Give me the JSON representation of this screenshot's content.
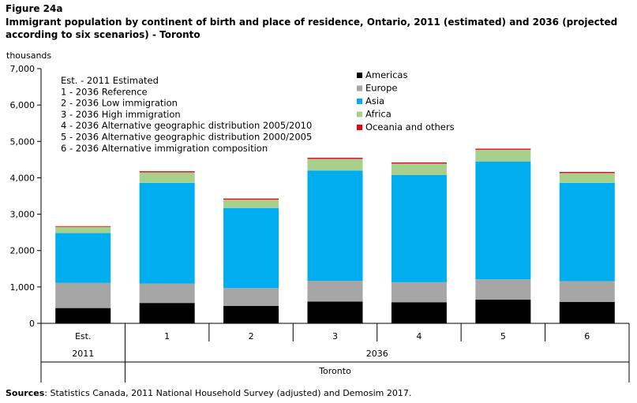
{
  "figure": {
    "label": "Figure 24a",
    "title": "Immigrant population by continent of birth and place of residence, Ontario, 2011 (estimated) and 2036 (projected according to six scenarios) - Toronto",
    "sources_label": "Sources",
    "sources_text": ": Statistics Canada, 2011 National Household Survey (adjusted) and Demosim 2017."
  },
  "chart_data": {
    "type": "bar",
    "stacked": true,
    "ylabel": "thousands",
    "ylim": [
      0,
      7000
    ],
    "yticks": [
      0,
      1000,
      2000,
      3000,
      4000,
      5000,
      6000,
      7000
    ],
    "ytick_labels": [
      "0",
      "1,000",
      "2,000",
      "3,000",
      "4,000",
      "5,000",
      "6,000",
      "7,000"
    ],
    "categories": [
      "Est.",
      "1",
      "2",
      "3",
      "4",
      "5",
      "6"
    ],
    "groups": [
      {
        "label": "2011",
        "span": [
          0,
          0
        ]
      },
      {
        "label": "2036",
        "span": [
          1,
          6
        ]
      }
    ],
    "region_label": "Toronto",
    "series": [
      {
        "name": "Americas",
        "color": "#000000",
        "values": [
          420,
          560,
          480,
          600,
          580,
          650,
          590
        ]
      },
      {
        "name": "Europe",
        "color": "#a6a6a6",
        "values": [
          690,
          530,
          490,
          570,
          550,
          560,
          570
        ]
      },
      {
        "name": "Asia",
        "color": "#00aeef",
        "values": [
          1370,
          2770,
          2200,
          3030,
          2950,
          3240,
          2700
        ]
      },
      {
        "name": "Africa",
        "color": "#a8d08d",
        "values": [
          170,
          290,
          230,
          320,
          310,
          320,
          270
        ]
      },
      {
        "name": "Oceania and others",
        "color": "#e30613",
        "values": [
          20,
          30,
          30,
          30,
          30,
          30,
          30
        ]
      }
    ],
    "annotations": [
      "Est. - 2011 Estimated",
      "1 - 2036 Reference",
      "2 - 2036 Low immigration",
      "3 - 2036 High immigration",
      "4 - 2036 Alternative geographic distribution 2005/2010",
      "5 - 2036 Alternative geographic distribution 2000/2005",
      "6 - 2036 Alternative immigration composition"
    ],
    "legend_position": "top-right",
    "grid": false
  }
}
